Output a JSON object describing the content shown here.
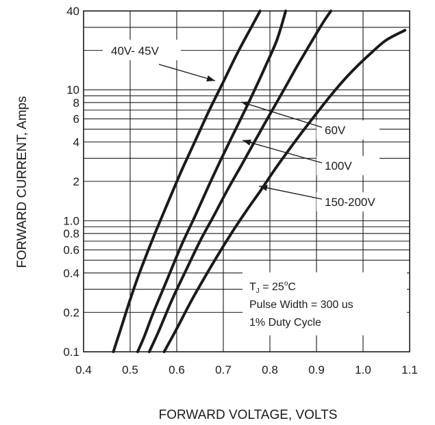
{
  "chart_data": {
    "type": "line",
    "title": "",
    "xlabel": "FORWARD VOLTAGE, VOLTS",
    "ylabel": "FORWARD CURRENT, Amps",
    "x_scale": "linear",
    "y_scale": "log",
    "xlim": [
      0.4,
      1.1
    ],
    "ylim": [
      0.1,
      40
    ],
    "x_ticks": [
      {
        "value": 0.4,
        "label": "0.4"
      },
      {
        "value": 0.5,
        "label": "0.5"
      },
      {
        "value": 0.6,
        "label": "0.6"
      },
      {
        "value": 0.7,
        "label": "0.7"
      },
      {
        "value": 0.8,
        "label": "0.8"
      },
      {
        "value": 0.9,
        "label": "0.9"
      },
      {
        "value": 1.0,
        "label": "1.0"
      },
      {
        "value": 1.1,
        "label": "1.1"
      }
    ],
    "y_ticks": [
      {
        "value": 0.1,
        "label": "0.1"
      },
      {
        "value": 0.2,
        "label": "0.2"
      },
      {
        "value": 0.4,
        "label": "0.4"
      },
      {
        "value": 0.6,
        "label": "0.6"
      },
      {
        "value": 0.8,
        "label": "0.8"
      },
      {
        "value": 1.0,
        "label": "1.0"
      },
      {
        "value": 2,
        "label": "2"
      },
      {
        "value": 4,
        "label": "4"
      },
      {
        "value": 6,
        "label": "6"
      },
      {
        "value": 8,
        "label": "8"
      },
      {
        "value": 10,
        "label": "10"
      },
      {
        "value": 40,
        "label": "40"
      }
    ],
    "y_gridlines": [
      0.2,
      0.3,
      0.4,
      0.5,
      0.6,
      0.7,
      0.8,
      0.9,
      1,
      2,
      3,
      4,
      5,
      6,
      7,
      8,
      9,
      10,
      20,
      30
    ],
    "x_gridlines": [
      0.5,
      0.6,
      0.7,
      0.8,
      0.9,
      1.0
    ],
    "grid": true,
    "series": [
      {
        "name": "40V- 45V",
        "x": [
          0.464,
          0.48,
          0.5,
          0.52,
          0.55,
          0.58,
          0.61,
          0.64,
          0.67,
          0.7,
          0.73,
          0.76,
          0.779
        ],
        "y": [
          0.1,
          0.15,
          0.25,
          0.4,
          0.75,
          1.35,
          2.4,
          4.1,
          7.0,
          11.5,
          19.0,
          30.0,
          40.0
        ]
      },
      {
        "name": "60V",
        "x": [
          0.516,
          0.53,
          0.55,
          0.58,
          0.61,
          0.64,
          0.67,
          0.7,
          0.73,
          0.76,
          0.79,
          0.815,
          0.834
        ],
        "y": [
          0.1,
          0.13,
          0.2,
          0.36,
          0.65,
          1.1,
          1.9,
          3.2,
          5.3,
          8.8,
          15.0,
          24.0,
          40.0
        ]
      },
      {
        "name": "100V",
        "x": [
          0.541,
          0.56,
          0.59,
          0.62,
          0.65,
          0.68,
          0.71,
          0.74,
          0.77,
          0.8,
          0.83,
          0.86,
          0.89,
          0.915,
          0.931
        ],
        "y": [
          0.1,
          0.14,
          0.25,
          0.42,
          0.7,
          1.1,
          1.75,
          2.7,
          4.2,
          6.5,
          10.0,
          15.5,
          23.5,
          33.0,
          40.0
        ]
      },
      {
        "name": "150-200V",
        "x": [
          0.573,
          0.6,
          0.63,
          0.66,
          0.69,
          0.72,
          0.75,
          0.78,
          0.81,
          0.84,
          0.87,
          0.9,
          0.93,
          0.96,
          0.99,
          1.02,
          1.05,
          1.09
        ],
        "y": [
          0.1,
          0.15,
          0.24,
          0.37,
          0.56,
          0.83,
          1.2,
          1.7,
          2.45,
          3.45,
          4.8,
          6.6,
          9.0,
          12.0,
          15.5,
          19.5,
          24.0,
          28.5
        ]
      }
    ],
    "annotations": [
      {
        "text": "40V- 45V",
        "points_to": "40V- 45V"
      },
      {
        "text": "60V",
        "points_to": "60V"
      },
      {
        "text": "100V",
        "points_to": "100V"
      },
      {
        "text": "150-200V",
        "points_to": "150-200V"
      }
    ],
    "conditions": {
      "tj_label": "T",
      "tj_subscript": "J",
      "tj_value": " = 25",
      "tj_degree": "o",
      "tj_unit": "C",
      "pulse_width": "Pulse Width = 300 us",
      "duty_cycle": "1% Duty Cycle"
    },
    "colors": {
      "curve": "#1a1a1a",
      "grid": "#1a1a1a",
      "background": "#ffffff"
    }
  }
}
